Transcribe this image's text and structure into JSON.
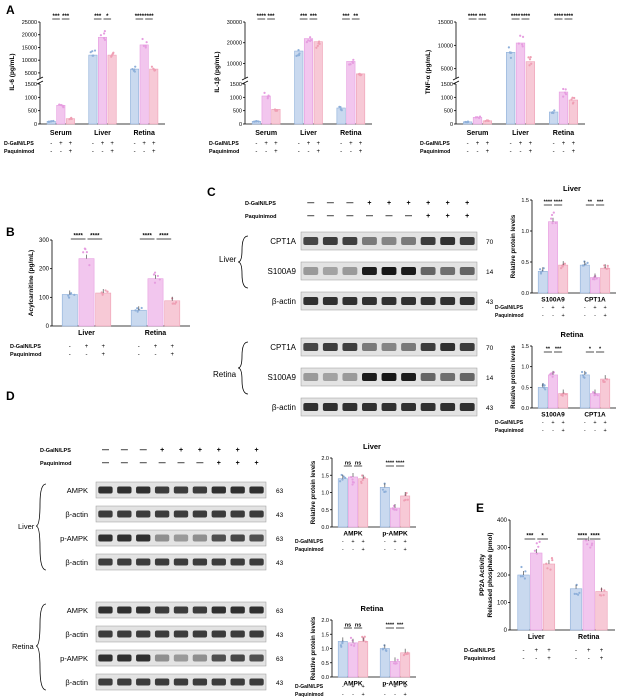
{
  "colors": {
    "blue": "#c9d9ef",
    "blue_edge": "#8fb0da",
    "pink1": "#f2c6ee",
    "pink1_edge": "#e69de0",
    "pink2": "#f7c9d6",
    "pink2_edge": "#ef9fb4",
    "band": "#111111",
    "gel_bg": "#e3e3e3"
  },
  "panel_letters": {
    "A": "A",
    "B": "B",
    "C": "C",
    "D": "D",
    "E": "E"
  },
  "treatment": {
    "dgal": "D-GalN/LPS",
    "paq": "Paquinimod",
    "dgal_short": "D-GalN/LPS",
    "paq_short": "Paquinimod"
  },
  "panel_a": {
    "groups": [
      "Serum",
      "Liver",
      "Retina"
    ],
    "signs": {
      "dgal": [
        "-",
        "+",
        "+"
      ],
      "paq": [
        "-",
        "-",
        "+"
      ]
    },
    "charts": [
      {
        "ylabel": "IL-6 (pg/mL)",
        "upper_ticks": [
          "25000",
          "20000",
          "15000",
          "10000",
          "5000"
        ],
        "lower_ticks": [
          "1500",
          "1000",
          "500",
          "0"
        ],
        "sig": [
          "***",
          "***",
          "***",
          "*",
          "****",
          "****"
        ]
      },
      {
        "ylabel": "IL-1β (pg/mL)",
        "upper_ticks": [
          "30000",
          "20000",
          "10000"
        ],
        "lower_ticks": [
          "1500",
          "1000",
          "500",
          "0"
        ],
        "sig": [
          "****",
          "***",
          "***",
          "***",
          "***",
          "**"
        ]
      },
      {
        "ylabel": "TNF-α (pg/mL)",
        "upper_ticks": [
          "15000",
          "10000",
          "5000"
        ],
        "lower_ticks": [
          "1500",
          "1000",
          "500",
          "0"
        ],
        "sig": [
          "****",
          "***",
          "****",
          "****",
          "****",
          "****"
        ]
      }
    ]
  },
  "panel_b": {
    "ylabel": "Acylcarnitine (pg/mL)",
    "ticks": [
      "300",
      "200",
      "100",
      "0"
    ],
    "groups": [
      "Liver",
      "Retina"
    ],
    "sig": [
      "****",
      "****",
      "****",
      "****"
    ],
    "signs": {
      "dgal": [
        "-",
        "+",
        "+"
      ],
      "paq": [
        "-",
        "-",
        "+"
      ]
    }
  },
  "panel_c": {
    "lane_signs": {
      "dgal": [
        "—",
        "—",
        "—",
        "+",
        "+",
        "+",
        "+",
        "+",
        "+"
      ],
      "paq": [
        "—",
        "—",
        "—",
        "—",
        "—",
        "—",
        "+",
        "+",
        "+"
      ]
    },
    "liver_label": "Liver",
    "retina_label": "Retina",
    "liver_blots": [
      {
        "label": "CPT1A",
        "kda": "70"
      },
      {
        "label": "S100A9",
        "kda": "14"
      },
      {
        "label": "β-actin",
        "kda": "43"
      }
    ],
    "retina_blots": [
      {
        "label": "CPT1A",
        "kda": "70"
      },
      {
        "label": "S100A9",
        "kda": "14"
      },
      {
        "label": "β-actin",
        "kda": "43"
      }
    ],
    "liver_chart": {
      "title": "Liver",
      "ylabel": "Relative protein levels",
      "ticks": [
        "1.5",
        "1.0",
        "0.5",
        "0.0"
      ],
      "groups": [
        "S100A9",
        "CPT1A"
      ],
      "sig": [
        "****",
        "****",
        "**",
        "***"
      ]
    },
    "retina_chart": {
      "title": "Retina",
      "ylabel": "Relative protein levels",
      "ticks": [
        "1.5",
        "1.0",
        "0.5",
        "0.0"
      ],
      "groups": [
        "S100A9",
        "CPT1A"
      ],
      "sig": [
        "**",
        "***",
        "*",
        "*"
      ]
    }
  },
  "panel_d": {
    "lane_signs": {
      "dgal": [
        "—",
        "—",
        "—",
        "+",
        "+",
        "+",
        "+",
        "+",
        "+"
      ],
      "paq": [
        "—",
        "—",
        "—",
        "—",
        "—",
        "—",
        "+",
        "+",
        "+"
      ]
    },
    "liver_label": "Liver",
    "retina_label": "Retina",
    "liver_blots": [
      {
        "label": "AMPK",
        "kda": "63"
      },
      {
        "label": "β-actin",
        "kda": "43"
      },
      {
        "label": "p-AMPK",
        "kda": "63"
      },
      {
        "label": "β-actin",
        "kda": "43"
      }
    ],
    "retina_blots": [
      {
        "label": "AMPK",
        "kda": "63"
      },
      {
        "label": "β-actin",
        "kda": "43"
      },
      {
        "label": "p-AMPK",
        "kda": "63"
      },
      {
        "label": "β-actin",
        "kda": "43"
      }
    ],
    "liver_chart": {
      "title": "Liver",
      "ylabel": "Relative protein levels",
      "ticks": [
        "2.0",
        "1.5",
        "1.0",
        "0.5",
        "0.0"
      ],
      "groups": [
        "AMPK",
        "p-AMPK"
      ],
      "sig": [
        "ns",
        "ns",
        "****",
        "****"
      ]
    },
    "retina_chart": {
      "title": "Retina",
      "ylabel": "Relative protein levels",
      "ticks": [
        "2.0",
        "1.5",
        "1.0",
        "0.5",
        "0.0"
      ],
      "groups": [
        "AMPK",
        "p-AMPK"
      ],
      "sig": [
        "ns",
        "ns",
        "****",
        "***"
      ]
    }
  },
  "panel_e": {
    "ylabel1": "PP2A Activity",
    "ylabel2": "Released phosphate (pmol)",
    "ticks": [
      "400",
      "300",
      "200",
      "100",
      "0"
    ],
    "groups": [
      "Liver",
      "Retina"
    ],
    "sig": [
      "***",
      "*",
      "****",
      "****"
    ],
    "signs": {
      "dgal": [
        "-",
        "+",
        "+"
      ],
      "paq": [
        "-",
        "-",
        "+"
      ]
    }
  },
  "chart_data": [
    {
      "type": "bar",
      "title": "",
      "ylabel": "IL-6 (pg/mL)",
      "categories": [
        "Serum",
        "Liver",
        "Retina"
      ],
      "series": [
        {
          "values": [
            100,
            12000,
            6500
          ]
        },
        {
          "values": [
            700,
            19000,
            16000
          ]
        },
        {
          "values": [
            200,
            12000,
            6500
          ]
        }
      ]
    },
    {
      "type": "bar",
      "title": "",
      "ylabel": "IL-1β (pg/mL)",
      "categories": [
        "Serum",
        "Liver",
        "Retina"
      ],
      "series": [
        {
          "values": [
            100,
            16000,
            600
          ]
        },
        {
          "values": [
            1050,
            22000,
            11000
          ]
        },
        {
          "values": [
            550,
            20500,
            5000
          ]
        }
      ]
    },
    {
      "type": "bar",
      "title": "",
      "ylabel": "TNF-α (pg/mL)",
      "categories": [
        "Serum",
        "Liver",
        "Retina"
      ],
      "series": [
        {
          "values": [
            80,
            8500,
            450
          ]
        },
        {
          "values": [
            250,
            10500,
            1200
          ]
        },
        {
          "values": [
            120,
            6500,
            900
          ]
        }
      ]
    },
    {
      "type": "bar",
      "title": "",
      "ylabel": "Acylcarnitine (pg/mL)",
      "categories": [
        "Liver",
        "Retina"
      ],
      "ylim": [
        0,
        300
      ],
      "series": [
        {
          "values": [
            110,
            55
          ]
        },
        {
          "values": [
            235,
            165
          ]
        },
        {
          "values": [
            115,
            88
          ]
        }
      ]
    },
    {
      "type": "bar",
      "title": "Liver",
      "ylabel": "Relative protein levels",
      "categories": [
        "S100A9",
        "CPT1A"
      ],
      "ylim": [
        0,
        1.5
      ],
      "series": [
        {
          "values": [
            0.35,
            0.45
          ]
        },
        {
          "values": [
            1.15,
            0.25
          ]
        },
        {
          "values": [
            0.45,
            0.4
          ]
        }
      ]
    },
    {
      "type": "bar",
      "title": "Retina",
      "ylabel": "Relative protein levels",
      "categories": [
        "S100A9",
        "CPT1A"
      ],
      "ylim": [
        0,
        1.5
      ],
      "series": [
        {
          "values": [
            0.5,
            0.8
          ]
        },
        {
          "values": [
            0.8,
            0.35
          ]
        },
        {
          "values": [
            0.35,
            0.7
          ]
        }
      ]
    },
    {
      "type": "bar",
      "title": "Liver",
      "ylabel": "Relative protein levels",
      "categories": [
        "AMPK",
        "p-AMPK"
      ],
      "ylim": [
        0,
        2.0
      ],
      "series": [
        {
          "values": [
            1.4,
            1.15
          ]
        },
        {
          "values": [
            1.45,
            0.55
          ]
        },
        {
          "values": [
            1.4,
            0.9
          ]
        }
      ]
    },
    {
      "type": "bar",
      "title": "Retina",
      "ylabel": "Relative protein levels",
      "categories": [
        "AMPK",
        "p-AMPK"
      ],
      "ylim": [
        0,
        2.0
      ],
      "series": [
        {
          "values": [
            1.25,
            1.0
          ]
        },
        {
          "values": [
            1.2,
            0.55
          ]
        },
        {
          "values": [
            1.25,
            0.85
          ]
        }
      ]
    },
    {
      "type": "bar",
      "title": "",
      "ylabel": "PP2A Activity Released phosphate (pmol)",
      "categories": [
        "Liver",
        "Retina"
      ],
      "ylim": [
        0,
        400
      ],
      "series": [
        {
          "values": [
            200,
            150
          ]
        },
        {
          "values": [
            280,
            325
          ]
        },
        {
          "values": [
            240,
            140
          ]
        }
      ]
    }
  ]
}
